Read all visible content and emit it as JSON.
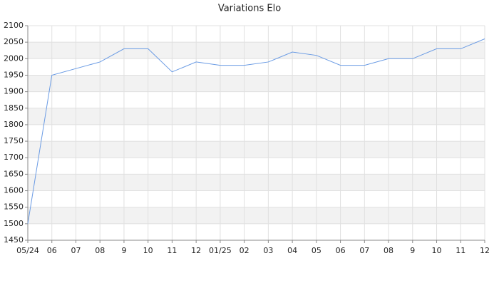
{
  "chart_data": {
    "type": "line",
    "title": "Variations Elo",
    "categories": [
      "05/24",
      "06",
      "07",
      "08",
      "9",
      "10",
      "11",
      "12",
      "01/25",
      "02",
      "03",
      "04",
      "05",
      "06",
      "07",
      "08",
      "9",
      "10",
      "11",
      "12"
    ],
    "series": [
      {
        "name": "Elo",
        "color": "#6a9be4",
        "values": [
          1500,
          1950,
          1970,
          1990,
          2030,
          2030,
          1960,
          1990,
          1980,
          1980,
          1990,
          2020,
          2010,
          1980,
          1980,
          2000,
          2000,
          2030,
          2030,
          2060
        ]
      }
    ],
    "ylim": [
      1450,
      2100
    ],
    "yticks": [
      1450,
      1500,
      1550,
      1600,
      1650,
      1700,
      1750,
      1800,
      1850,
      1900,
      1950,
      2000,
      2050,
      2100
    ],
    "grid": true,
    "bands": true
  }
}
